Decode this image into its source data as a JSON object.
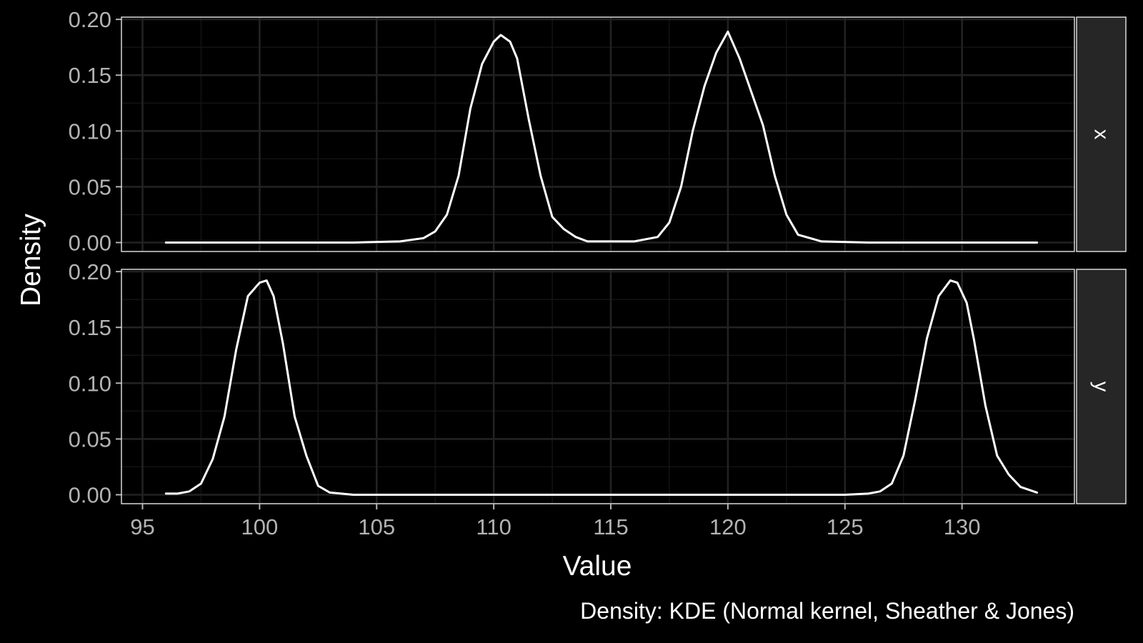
{
  "chart_data": {
    "type": "area",
    "xlabel": "Value",
    "ylabel": "Density",
    "caption": "Density: KDE (Normal kernel, Sheather & Jones)",
    "xlim": [
      94.1,
      134.8
    ],
    "ylim": [
      -0.008,
      0.202
    ],
    "xticks": [
      95,
      100,
      105,
      110,
      115,
      120,
      125,
      130
    ],
    "xtick_labels": [
      "95",
      "100",
      "105",
      "110",
      "115",
      "120",
      "125",
      "130"
    ],
    "yticks": [
      0,
      0.05,
      0.1,
      0.15,
      0.2
    ],
    "ytick_labels": [
      "0.00",
      "0.05",
      "0.10",
      "0.15",
      "0.20"
    ],
    "grid": true,
    "facets": [
      {
        "strip": "x",
        "series": [
          {
            "color": "#FFFFFF",
            "x": [
              96,
              100,
              104,
              106,
              107,
              107.5,
              108,
              108.5,
              109,
              109.5,
              110,
              110.3,
              110.7,
              111,
              111.5,
              112,
              112.5,
              113,
              113.5,
              114,
              116,
              117,
              117.5,
              118,
              118.5,
              119,
              119.5,
              120,
              120.5,
              121,
              121.5,
              122,
              122.5,
              123,
              124,
              126,
              130,
              133.2
            ],
            "y": [
              0,
              0,
              0,
              0.001,
              0.004,
              0.01,
              0.025,
              0.06,
              0.12,
              0.16,
              0.18,
              0.186,
              0.18,
              0.165,
              0.11,
              0.06,
              0.023,
              0.012,
              0.005,
              0.001,
              0.001,
              0.005,
              0.018,
              0.05,
              0.1,
              0.14,
              0.17,
              0.189,
              0.165,
              0.135,
              0.105,
              0.06,
              0.025,
              0.007,
              0.001,
              0,
              0,
              0
            ]
          }
        ]
      },
      {
        "strip": "y",
        "series": [
          {
            "color": "#FFFFFF",
            "x": [
              96,
              96.5,
              97,
              97.5,
              98,
              98.5,
              99,
              99.5,
              100,
              100.3,
              100.6,
              101,
              101.5,
              102,
              102.5,
              103,
              104,
              106,
              110,
              115,
              120,
              125,
              126,
              126.5,
              127,
              127.5,
              128,
              128.5,
              129,
              129.5,
              129.8,
              130.2,
              130.5,
              131,
              131.5,
              132,
              132.5,
              133.2
            ],
            "y": [
              0.001,
              0.001,
              0.003,
              0.01,
              0.032,
              0.07,
              0.13,
              0.178,
              0.19,
              0.192,
              0.178,
              0.135,
              0.07,
              0.035,
              0.008,
              0.002,
              0,
              0,
              0,
              0,
              0,
              0,
              0.001,
              0.003,
              0.01,
              0.035,
              0.085,
              0.14,
              0.178,
              0.192,
              0.19,
              0.172,
              0.14,
              0.08,
              0.035,
              0.018,
              0.007,
              0.002
            ]
          }
        ]
      }
    ]
  }
}
